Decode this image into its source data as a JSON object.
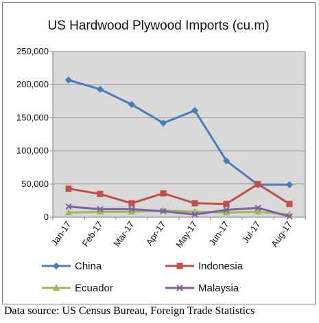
{
  "source_note": "Data source:  US Census Bureau, Foreign Trade Statistics",
  "colors": {
    "China": "#4A7EBB",
    "Indonesia": "#C0504D",
    "Ecuador": "#9BBB59",
    "Malaysia": "#7F5FA0",
    "plot_background": "#D9D9D9",
    "frame": "#7F7F7F",
    "gridline": "#8C8C8C"
  },
  "chart_data": {
    "type": "line",
    "title": "US Hardwood Plywood Imports (cu.m)",
    "xlabel": "",
    "ylabel": "",
    "categories": [
      "Jan-17",
      "Feb-17",
      "Mar-17",
      "Apr-17",
      "May-17",
      "Jun-17",
      "Jul-17",
      "Aug-17"
    ],
    "ylim": [
      0,
      250000
    ],
    "ytick_values": [
      0,
      50000,
      100000,
      150000,
      200000,
      250000
    ],
    "ytick_labels": [
      "0",
      "50,000",
      "100,000",
      "150,000",
      "200,000",
      "250,000"
    ],
    "grid": true,
    "legend_position": "bottom",
    "series": [
      {
        "name": "China",
        "marker": "diamond",
        "values": [
          207000,
          193000,
          170000,
          142000,
          161000,
          85000,
          49000,
          49000
        ]
      },
      {
        "name": "Indonesia",
        "marker": "square",
        "values": [
          43000,
          35000,
          21000,
          36000,
          21000,
          20000,
          50000,
          20000
        ]
      },
      {
        "name": "Ecuador",
        "marker": "triangle",
        "values": [
          7000,
          8000,
          8000,
          10000,
          8000,
          7000,
          8000,
          4000
        ]
      },
      {
        "name": "Malaysia",
        "marker": "x",
        "values": [
          16000,
          12000,
          12000,
          9000,
          4000,
          11000,
          14000,
          1000
        ]
      }
    ]
  }
}
